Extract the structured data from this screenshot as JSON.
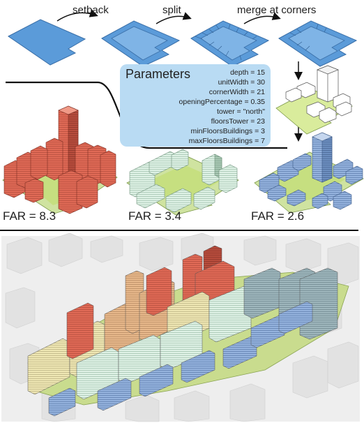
{
  "steps": [
    "setback",
    "split",
    "merge at corners"
  ],
  "parameters": {
    "title": "Parameters",
    "items": [
      "depth = 15",
      "unitWidth = 30",
      "cornerWidth = 21",
      "openingPercentage = 0.35",
      "tower = \"north\"",
      "floorsTower = 23",
      "minFloorsBuildings = 3",
      "maxFloorsBuildings = 7"
    ]
  },
  "far": [
    "FAR = 8.3",
    "FAR = 3.4",
    "FAR = 2.6"
  ],
  "colors": {
    "lot": "#5b9bd9",
    "lot_edge": "#3a6fa8",
    "green": "#cfe89a",
    "red": "#e2705d",
    "mint": "#d8efe1",
    "blue": "#8fb0dc",
    "params_bg": "#b9dbf3"
  }
}
